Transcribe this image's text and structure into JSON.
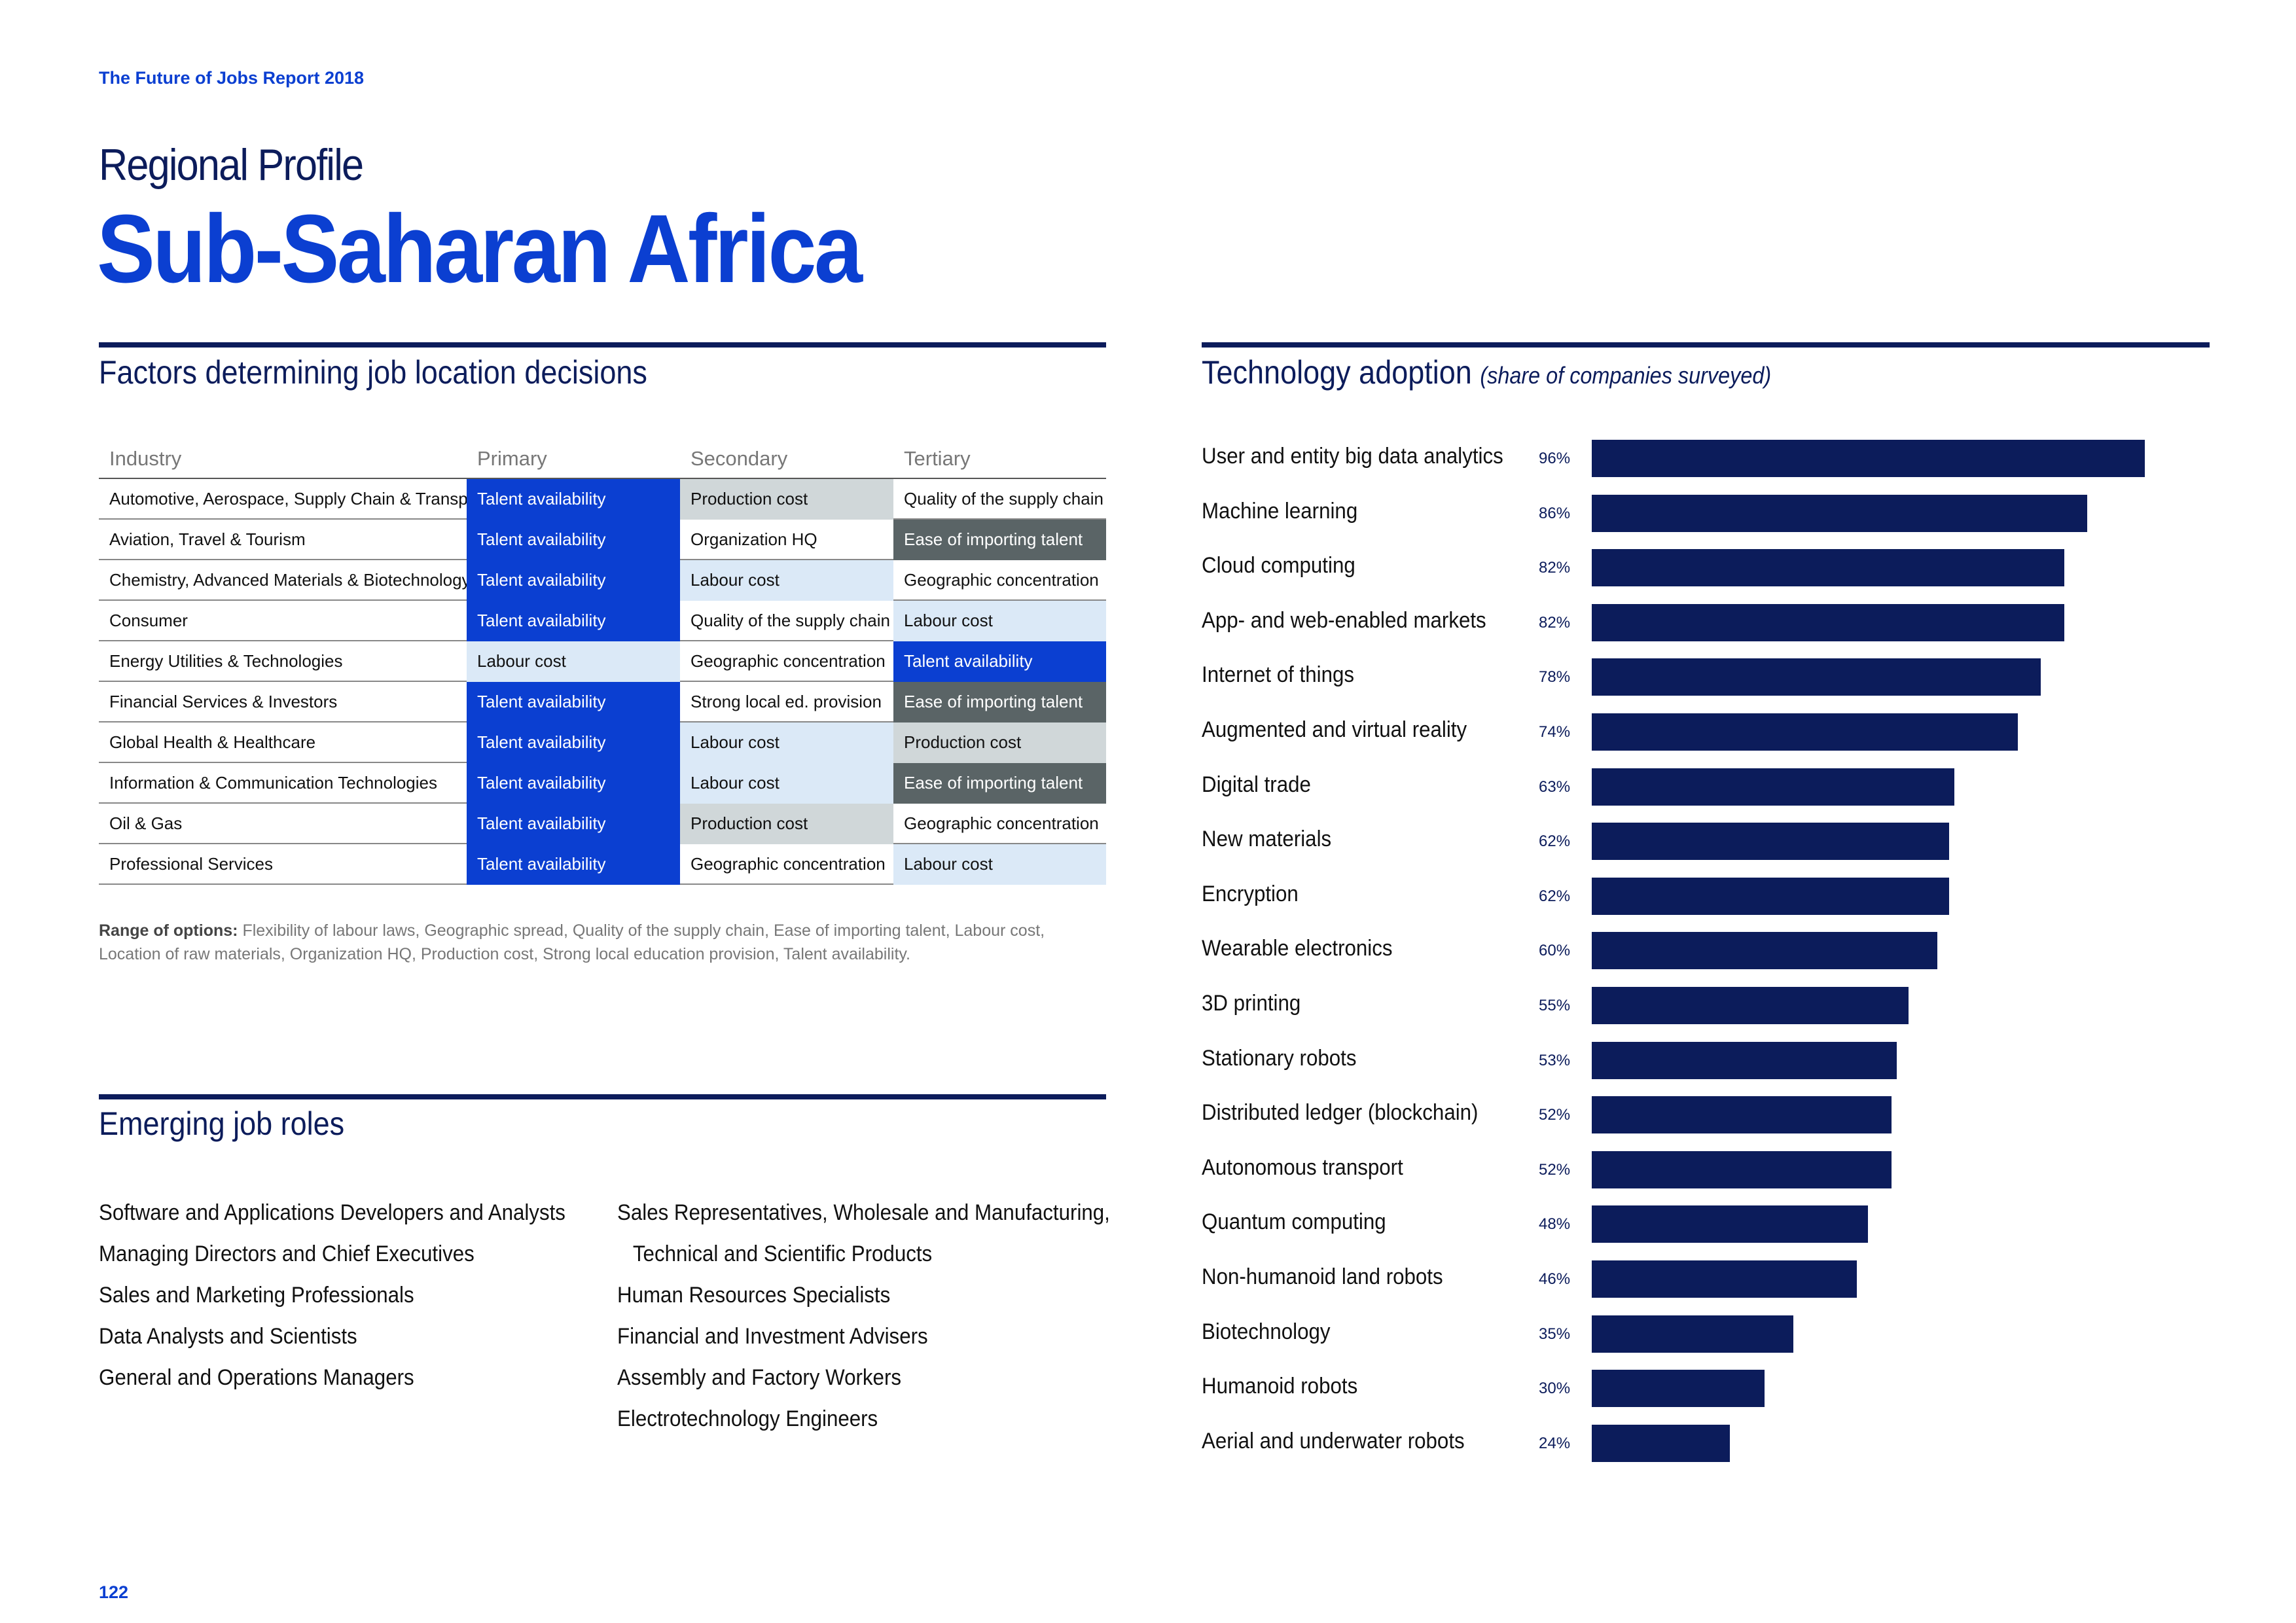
{
  "header": {
    "report_title": "The Future of Jobs Report 2018",
    "profile_label": "Regional Profile",
    "region_title": "Sub-Saharan Africa"
  },
  "colors": {
    "navy": "#0c1c5b",
    "blue": "#0b3fd1",
    "talent": "#0b3fd1",
    "light_blue": "#dbe9f7",
    "light_grey": "#d0d7d9",
    "dark_grey": "#5a6466",
    "white": "#ffffff"
  },
  "factors": {
    "title": "Factors determining job location decisions",
    "columns": [
      "Industry",
      "Primary",
      "Secondary",
      "Tertiary"
    ],
    "rows": [
      {
        "industry": "Automotive, Aerospace, Supply Chain & Transport",
        "primary": "Talent availability",
        "secondary": "Production cost",
        "tertiary": "Quality of the supply chain"
      },
      {
        "industry": "Aviation, Travel & Tourism",
        "primary": "Talent availability",
        "secondary": "Organization HQ",
        "tertiary": "Ease of importing talent"
      },
      {
        "industry": "Chemistry, Advanced Materials & Biotechnology",
        "primary": "Talent availability",
        "secondary": "Labour cost",
        "tertiary": "Geographic concentration"
      },
      {
        "industry": "Consumer",
        "primary": "Talent availability",
        "secondary": "Quality of the supply chain",
        "tertiary": "Labour cost"
      },
      {
        "industry": "Energy Utilities & Technologies",
        "primary": "Labour cost",
        "secondary": "Geographic concentration",
        "tertiary": "Talent availability"
      },
      {
        "industry": "Financial Services & Investors",
        "primary": "Talent availability",
        "secondary": "Strong local ed. provision",
        "tertiary": "Ease of importing talent"
      },
      {
        "industry": "Global Health & Healthcare",
        "primary": "Talent availability",
        "secondary": "Labour cost",
        "tertiary": "Production cost"
      },
      {
        "industry": "Information & Communication Technologies",
        "primary": "Talent availability",
        "secondary": "Labour cost",
        "tertiary": "Ease of importing talent"
      },
      {
        "industry": "Oil & Gas",
        "primary": "Talent availability",
        "secondary": "Production cost",
        "tertiary": "Geographic concentration"
      },
      {
        "industry": "Professional Services",
        "primary": "Talent availability",
        "secondary": "Geographic concentration",
        "tertiary": "Labour cost"
      }
    ],
    "footnote_label": "Range of options:",
    "footnote_text": "Flexibility of labour laws, Geographic spread, Quality of the supply chain, Ease of importing talent, Labour cost, Location of raw materials, Organization HQ, Production cost, Strong local education provision, Talent availability."
  },
  "roles": {
    "title": "Emerging job roles",
    "left": [
      "Software and Applications Developers and Analysts",
      "Managing Directors and Chief Executives",
      "Sales and Marketing Professionals",
      "Data Analysts and Scientists",
      "General and Operations Managers"
    ],
    "right_first_line": "Sales Representatives, Wholesale and Manufacturing,",
    "right_first_cont": "Technical and Scientific Products",
    "right": [
      "Human Resources Specialists",
      "Financial and Investment Advisers",
      "Assembly and Factory Workers",
      "Electrotechnology Engineers"
    ]
  },
  "technology": {
    "title": "Technology adoption",
    "subtitle": "(share of companies surveyed)"
  },
  "chart_data": {
    "type": "bar",
    "orientation": "horizontal",
    "title": "Technology adoption (share of companies surveyed)",
    "unit": "%",
    "xlim": [
      0,
      100
    ],
    "categories": [
      "User and entity big data analytics",
      "Machine learning",
      "Cloud computing",
      "App- and web-enabled markets",
      "Internet of things",
      "Augmented and virtual reality",
      "Digital trade",
      "New materials",
      "Encryption",
      "Wearable electronics",
      "3D printing",
      "Stationary robots",
      "Distributed ledger (blockchain)",
      "Autonomous transport",
      "Quantum computing",
      "Non-humanoid land robots",
      "Biotechnology",
      "Humanoid robots",
      "Aerial and underwater robots"
    ],
    "values": [
      96,
      86,
      82,
      82,
      78,
      74,
      63,
      62,
      62,
      60,
      55,
      53,
      52,
      52,
      48,
      46,
      35,
      30,
      24
    ],
    "labels": [
      "96%",
      "86%",
      "82%",
      "82%",
      "78%",
      "74%",
      "63%",
      "62%",
      "62%",
      "60%",
      "55%",
      "53%",
      "52%",
      "52%",
      "48%",
      "46%",
      "35%",
      "30%",
      "24%"
    ]
  },
  "footer": {
    "page_number": "122"
  }
}
